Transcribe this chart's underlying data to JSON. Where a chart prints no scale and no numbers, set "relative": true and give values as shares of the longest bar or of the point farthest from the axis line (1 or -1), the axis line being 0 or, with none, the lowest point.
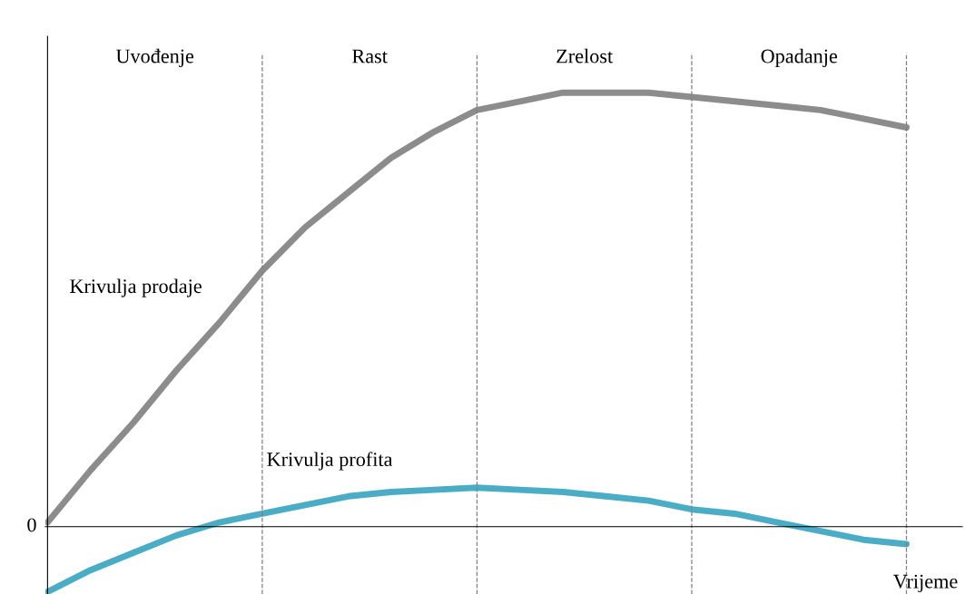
{
  "chart_data": {
    "type": "line",
    "relative": true,
    "xlabel": "Vrijeme",
    "categories": [
      null,
      null,
      null,
      null,
      null,
      null,
      null,
      null,
      null,
      null,
      null,
      null,
      null,
      null,
      null,
      null,
      null,
      null,
      null,
      null,
      null
    ],
    "series": [
      {
        "name": "Krivulja prodaje",
        "color": "#8c8c8c",
        "values": [
          0.01,
          0.13,
          0.24,
          0.36,
          0.47,
          0.59,
          0.69,
          0.77,
          0.85,
          0.91,
          0.96,
          0.98,
          1.0,
          1.0,
          1.0,
          0.99,
          0.98,
          0.97,
          0.96,
          0.94,
          0.92
        ]
      },
      {
        "name": "Krivulja profita",
        "color": "#4bacc6",
        "values": [
          -0.15,
          -0.1,
          -0.06,
          -0.02,
          0.01,
          0.03,
          0.05,
          0.07,
          0.08,
          0.085,
          0.09,
          0.085,
          0.08,
          0.07,
          0.06,
          0.04,
          0.03,
          0.01,
          -0.01,
          -0.03,
          -0.04
        ]
      }
    ],
    "annotations": [
      "0",
      "Uvođenje",
      "Rast",
      "Zrelost",
      "Opadanje"
    ],
    "grid": "x",
    "legend": false,
    "marker": "none",
    "line_style": "solid"
  }
}
